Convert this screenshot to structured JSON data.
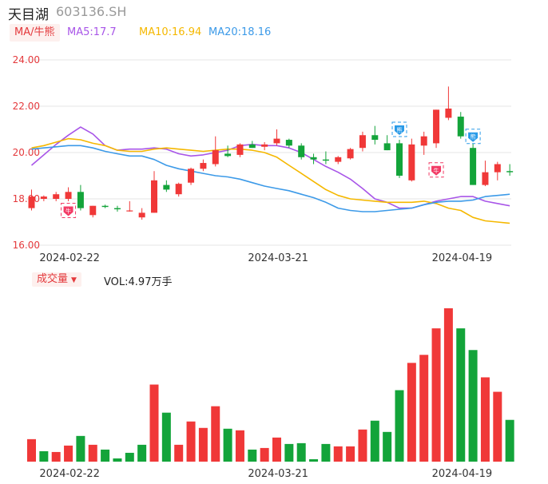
{
  "header": {
    "name": "天目湖",
    "code": "603136.SH"
  },
  "ma_legend": {
    "toggle_label": "MA/牛熊",
    "items": [
      {
        "text": "MA5:17.7",
        "color": "#a855e8"
      },
      {
        "text": "MA10:16.94",
        "color": "#f5b800"
      },
      {
        "text": "MA20:18.16",
        "color": "#3c9ae8"
      }
    ]
  },
  "volume_legend": {
    "toggle_label": "成交量",
    "value_text": "VOL:4.97万手"
  },
  "colors": {
    "up": "#f03838",
    "down": "#13a43a",
    "grid": "#e6e6e6",
    "axis_text": "#e4393c"
  },
  "chart_data": [
    {
      "type": "candlestick",
      "y_ticks": [
        "24.00",
        "22.00",
        "20.00",
        "18.00",
        "16.00"
      ],
      "ylim": [
        16,
        24
      ],
      "x_ticks": [
        {
          "label": "2024-02-22",
          "index": 2
        },
        {
          "label": "2024-03-21",
          "index": 19
        },
        {
          "label": "2024-04-19",
          "index": 34
        }
      ],
      "candles": [
        {
          "o": 17.6,
          "h": 18.4,
          "l": 17.5,
          "c": 18.1
        },
        {
          "o": 18.0,
          "h": 18.15,
          "l": 17.9,
          "c": 18.1
        },
        {
          "o": 18.0,
          "h": 18.3,
          "l": 17.9,
          "c": 18.2
        },
        {
          "o": 18.0,
          "h": 18.5,
          "l": 17.9,
          "c": 18.3
        },
        {
          "o": 18.3,
          "h": 18.6,
          "l": 17.5,
          "c": 17.6
        },
        {
          "o": 17.3,
          "h": 17.7,
          "l": 17.2,
          "c": 17.7
        },
        {
          "o": 17.7,
          "h": 17.75,
          "l": 17.6,
          "c": 17.65
        },
        {
          "o": 17.6,
          "h": 17.7,
          "l": 17.45,
          "c": 17.55
        },
        {
          "o": 17.5,
          "h": 17.9,
          "l": 17.45,
          "c": 17.5
        },
        {
          "o": 17.2,
          "h": 17.6,
          "l": 17.1,
          "c": 17.4
        },
        {
          "o": 17.4,
          "h": 19.2,
          "l": 17.4,
          "c": 18.8
        },
        {
          "o": 18.6,
          "h": 18.8,
          "l": 18.3,
          "c": 18.4
        },
        {
          "o": 18.2,
          "h": 18.7,
          "l": 18.1,
          "c": 18.65
        },
        {
          "o": 18.7,
          "h": 19.35,
          "l": 18.6,
          "c": 19.3
        },
        {
          "o": 19.3,
          "h": 19.7,
          "l": 19.2,
          "c": 19.55
        },
        {
          "o": 19.5,
          "h": 20.7,
          "l": 19.4,
          "c": 20.1
        },
        {
          "o": 19.95,
          "h": 20.3,
          "l": 19.8,
          "c": 19.85
        },
        {
          "o": 19.9,
          "h": 20.4,
          "l": 19.8,
          "c": 20.35
        },
        {
          "o": 20.35,
          "h": 20.5,
          "l": 20.2,
          "c": 20.2
        },
        {
          "o": 20.25,
          "h": 20.45,
          "l": 20.1,
          "c": 20.35
        },
        {
          "o": 20.4,
          "h": 21.0,
          "l": 20.3,
          "c": 20.6
        },
        {
          "o": 20.55,
          "h": 20.6,
          "l": 20.2,
          "c": 20.3
        },
        {
          "o": 20.3,
          "h": 20.4,
          "l": 19.7,
          "c": 19.8
        },
        {
          "o": 19.8,
          "h": 19.95,
          "l": 19.5,
          "c": 19.7
        },
        {
          "o": 19.7,
          "h": 20.05,
          "l": 19.5,
          "c": 19.65
        },
        {
          "o": 19.6,
          "h": 19.85,
          "l": 19.5,
          "c": 19.8
        },
        {
          "o": 19.75,
          "h": 20.2,
          "l": 19.7,
          "c": 20.15
        },
        {
          "o": 20.2,
          "h": 20.9,
          "l": 20.05,
          "c": 20.75
        },
        {
          "o": 20.75,
          "h": 21.15,
          "l": 20.35,
          "c": 20.55
        },
        {
          "o": 20.4,
          "h": 20.75,
          "l": 20.1,
          "c": 20.1
        },
        {
          "o": 20.4,
          "h": 20.55,
          "l": 18.9,
          "c": 19.0
        },
        {
          "o": 18.8,
          "h": 20.6,
          "l": 18.75,
          "c": 20.35
        },
        {
          "o": 20.3,
          "h": 20.9,
          "l": 19.9,
          "c": 20.7
        },
        {
          "o": 20.4,
          "h": 21.85,
          "l": 20.2,
          "c": 21.85
        },
        {
          "o": 21.5,
          "h": 22.85,
          "l": 21.4,
          "c": 21.9
        },
        {
          "o": 21.55,
          "h": 21.75,
          "l": 20.6,
          "c": 20.7
        },
        {
          "o": 20.2,
          "h": 20.4,
          "l": 18.6,
          "c": 18.6
        },
        {
          "o": 18.6,
          "h": 19.65,
          "l": 18.55,
          "c": 19.15
        },
        {
          "o": 19.15,
          "h": 19.6,
          "l": 18.8,
          "c": 19.5
        },
        {
          "o": 19.2,
          "h": 19.5,
          "l": 19.0,
          "c": 19.15
        }
      ],
      "series": [
        {
          "key": "ma5",
          "values": [
            19.45,
            19.9,
            20.35,
            20.75,
            21.1,
            20.8,
            20.3,
            20.1,
            20.15,
            20.15,
            20.2,
            20.15,
            19.95,
            19.85,
            19.9,
            20.0,
            20.1,
            20.3,
            20.35,
            20.3,
            20.3,
            20.2,
            20.0,
            19.7,
            19.4,
            19.15,
            18.85,
            18.45,
            18.0,
            17.85,
            17.6,
            17.6,
            17.75,
            17.9,
            18.0,
            18.1,
            18.1,
            17.9,
            17.8,
            17.7
          ]
        },
        {
          "key": "ma10",
          "values": [
            20.2,
            20.3,
            20.45,
            20.6,
            20.55,
            20.4,
            20.3,
            20.1,
            20.05,
            20.05,
            20.15,
            20.2,
            20.15,
            20.1,
            20.05,
            20.1,
            20.15,
            20.15,
            20.1,
            20.0,
            19.8,
            19.45,
            19.1,
            18.75,
            18.4,
            18.15,
            18.0,
            17.95,
            17.9,
            17.85,
            17.85,
            17.85,
            17.9,
            17.8,
            17.6,
            17.5,
            17.2,
            17.05,
            17.0,
            16.95
          ]
        },
        {
          "key": "ma20",
          "values": [
            20.15,
            20.2,
            20.25,
            20.3,
            20.3,
            20.2,
            20.05,
            19.95,
            19.85,
            19.85,
            19.7,
            19.45,
            19.3,
            19.2,
            19.1,
            19.0,
            18.95,
            18.85,
            18.7,
            18.55,
            18.45,
            18.35,
            18.2,
            18.05,
            17.85,
            17.6,
            17.5,
            17.45,
            17.45,
            17.5,
            17.55,
            17.6,
            17.75,
            17.85,
            17.9,
            17.9,
            17.95,
            18.1,
            18.15,
            18.2
          ]
        }
      ],
      "signals": [
        {
          "index": 3,
          "type": "bull",
          "glyph": "牛",
          "price": 17.5
        },
        {
          "index": 30,
          "type": "bear",
          "glyph": "熊",
          "price": 21.0
        },
        {
          "index": 33,
          "type": "bull",
          "glyph": "牛",
          "price": 19.25
        },
        {
          "index": 36,
          "type": "bear",
          "glyph": "熊",
          "price": 20.7
        }
      ]
    },
    {
      "type": "bar",
      "title": "成交量",
      "x_ticks": [
        {
          "label": "2024-02-22",
          "index": 2
        },
        {
          "label": "2024-03-21",
          "index": 19
        },
        {
          "label": "2024-04-19",
          "index": 34
        }
      ],
      "values": [
        2.8,
        1.3,
        1.2,
        2.0,
        3.2,
        2.1,
        1.5,
        0.4,
        1.1,
        2.1,
        9.6,
        6.1,
        2.1,
        5.0,
        4.2,
        6.9,
        4.1,
        3.9,
        1.5,
        1.7,
        3.0,
        2.2,
        2.3,
        0.3,
        2.2,
        1.9,
        1.9,
        4.0,
        5.1,
        3.7,
        8.9,
        12.3,
        13.3,
        16.6,
        19.1,
        16.6,
        13.9,
        10.5,
        8.7,
        5.2
      ],
      "colors": [
        "up",
        "down",
        "up",
        "up",
        "down",
        "up",
        "down",
        "down",
        "down",
        "down",
        "up",
        "down",
        "up",
        "up",
        "up",
        "up",
        "down",
        "up",
        "down",
        "up",
        "up",
        "down",
        "down",
        "down",
        "down",
        "up",
        "up",
        "up",
        "down",
        "down",
        "down",
        "up",
        "up",
        "up",
        "up",
        "down",
        "down",
        "up",
        "up",
        "down"
      ]
    }
  ]
}
